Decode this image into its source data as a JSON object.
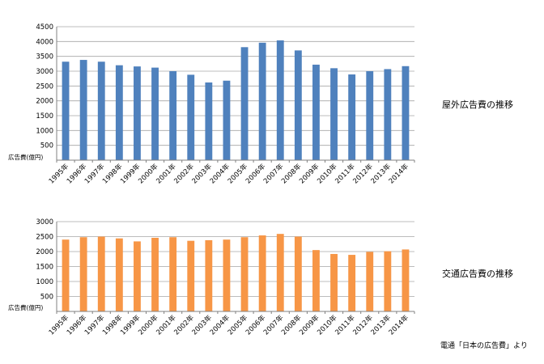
{
  "source_note": "電通「日本の広告費」より",
  "chart_data": [
    {
      "type": "bar",
      "title": "屋外広告費の推移",
      "ylabel": "広告費(億円)",
      "xlabel": "",
      "color": "#4F81BD",
      "ylim": [
        0,
        4500
      ],
      "yticks": [
        0,
        500,
        1000,
        1500,
        2000,
        2500,
        3000,
        3500,
        4000,
        4500
      ],
      "grid": true,
      "categories": [
        "1995年",
        "1996年",
        "1997年",
        "1998年",
        "1999年",
        "2000年",
        "2001年",
        "2002年",
        "2003年",
        "2004年",
        "2005年",
        "2006年",
        "2007年",
        "2008年",
        "2009年",
        "2010年",
        "2011年",
        "2012年",
        "2013年",
        "2014年"
      ],
      "values": [
        3320,
        3380,
        3320,
        3200,
        3160,
        3120,
        3000,
        2880,
        2620,
        2680,
        3810,
        3960,
        4040,
        3700,
        3220,
        3100,
        2890,
        3000,
        3070,
        3170
      ]
    },
    {
      "type": "bar",
      "title": "交通広告費の推移",
      "ylabel": "広告費(億円)",
      "xlabel": "",
      "color": "#F79646",
      "ylim": [
        0,
        3000
      ],
      "yticks": [
        0,
        500,
        1000,
        1500,
        2000,
        2500,
        3000
      ],
      "grid": true,
      "categories": [
        "1995年",
        "1996年",
        "1997年",
        "1998年",
        "1999年",
        "2000年",
        "2001年",
        "2002年",
        "2003年",
        "2004年",
        "2005年",
        "2006年",
        "2007年",
        "2008年",
        "2009年",
        "2010年",
        "2011年",
        "2012年",
        "2013年",
        "2014年"
      ],
      "values": [
        2400,
        2480,
        2500,
        2440,
        2340,
        2460,
        2480,
        2360,
        2380,
        2400,
        2480,
        2540,
        2590,
        2500,
        2050,
        1920,
        1890,
        1990,
        2010,
        2070
      ]
    }
  ]
}
